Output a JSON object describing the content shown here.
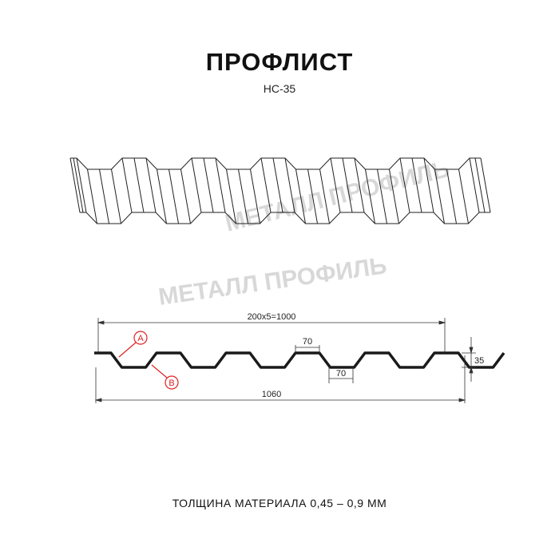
{
  "title": "ПРОФЛИСТ",
  "subtitle": "НС-35",
  "watermark": "МЕТАЛЛ ПРОФИЛЬ",
  "dimensions": {
    "pitch": "200x5=1000",
    "top_width": "70",
    "bottom_width": "70",
    "height": "35",
    "total_width": "1060"
  },
  "labels": {
    "a": "A",
    "b": "B"
  },
  "footer": "ТОЛЩИНА МАТЕРИАЛА 0,45 – 0,9 ММ",
  "colors": {
    "profile": "#1a1a1a",
    "callout": "#e02020",
    "watermark": "#d8d8d8"
  }
}
